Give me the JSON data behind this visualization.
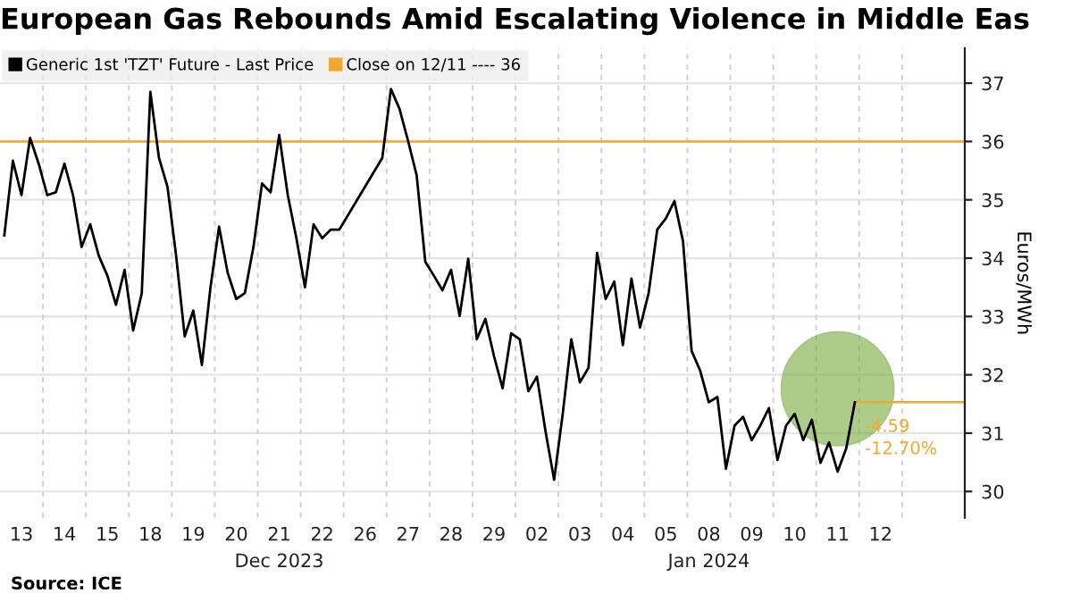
{
  "chart_data": {
    "type": "line",
    "title": "European Gas Rebounds Amid Escalating Violence in Middle Eas",
    "ylabel": "Euros/MWh",
    "categories": [
      null,
      null,
      "13",
      null,
      null,
      null,
      null,
      "14",
      null,
      null,
      null,
      null,
      "15",
      null,
      null,
      null,
      null,
      "18",
      null,
      null,
      null,
      null,
      "19",
      null,
      null,
      null,
      null,
      "20",
      null,
      null,
      null,
      null,
      "21",
      null,
      null,
      null,
      null,
      "22",
      null,
      null,
      null,
      null,
      "26",
      null,
      null,
      null,
      null,
      "27",
      null,
      null,
      null,
      null,
      "28",
      null,
      null,
      null,
      null,
      "29",
      null,
      null,
      null,
      null,
      "02",
      null,
      null,
      null,
      null,
      "03",
      null,
      null,
      null,
      null,
      "04",
      null,
      null,
      null,
      null,
      "05",
      null,
      null,
      null,
      null,
      "08",
      null,
      null,
      null,
      null,
      "09",
      null,
      null,
      null,
      null,
      "10",
      null,
      null,
      null,
      null,
      "11",
      null,
      null,
      null,
      null,
      "12",
      null,
      null
    ],
    "ylim": [
      29.55,
      37.6
    ],
    "yticks": [
      30,
      31,
      32,
      33,
      34,
      35,
      36,
      37
    ],
    "grid": true,
    "legend": "top left",
    "line_style": "solid",
    "series": [
      {
        "name": "Generic 1st 'TZT' Future - Last Price",
        "color": "#000000",
        "values": [
          34.39,
          35.67,
          35.08,
          36.06,
          35.62,
          35.08,
          35.13,
          35.62,
          35.08,
          34.19,
          34.58,
          34.04,
          33.7,
          33.2,
          33.8,
          32.76,
          33.4,
          36.85,
          35.72,
          35.22,
          34.04,
          32.66,
          33.1,
          32.17,
          33.5,
          34.54,
          33.75,
          33.3,
          33.4,
          34.19,
          35.28,
          35.13,
          36.11,
          35.08,
          34.34,
          33.5,
          34.58,
          34.34,
          34.49,
          34.49,
          null,
          null,
          null,
          null,
          35.72,
          36.9,
          36.56,
          36.01,
          35.42,
          33.94,
          33.7,
          33.45,
          33.8,
          33.01,
          33.99,
          32.61,
          32.96,
          32.32,
          31.77,
          32.71,
          32.61,
          31.72,
          31.97,
          31.03,
          30.2,
          31.33,
          32.61,
          31.87,
          32.12,
          34.09,
          33.3,
          33.6,
          32.51,
          33.65,
          32.81,
          33.4,
          34.49,
          34.68,
          34.98,
          34.29,
          32.41,
          32.07,
          31.53,
          31.62,
          30.39,
          31.13,
          31.28,
          30.88,
          31.13,
          31.43,
          30.54,
          31.13,
          31.33,
          30.88,
          31.23,
          30.49,
          30.84,
          30.34,
          30.74,
          31.53,
          null,
          null,
          null,
          null,
          null
        ]
      }
    ],
    "ref_lines": [
      {
        "axis": "y",
        "value": 36,
        "label": "Close on 12/11 ---- 36",
        "color": "#f0a830",
        "line_style": "solid"
      }
    ],
    "annotations": [
      "Dec 2023",
      "Jan 2024",
      "Source: ICE",
      "-4.59",
      "-12.70%"
    ]
  }
}
